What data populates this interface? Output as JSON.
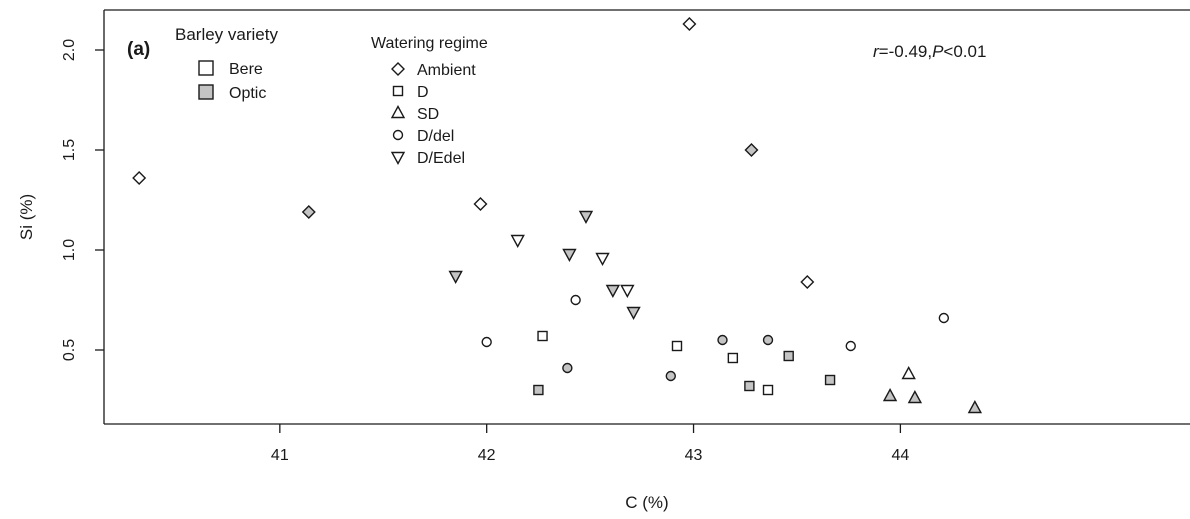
{
  "chart_data": {
    "type": "scatter",
    "panel_label": "(a)",
    "xlabel": "C (%)",
    "ylabel": "Si (%)",
    "xlim": [
      40.15,
      45.4
    ],
    "ylim": [
      0.13,
      2.2
    ],
    "xticks": [
      41,
      42,
      43,
      44
    ],
    "yticks": [
      0.5,
      1.0,
      1.5,
      2.0
    ],
    "xtick_labels": [
      "41",
      "42",
      "43",
      "44"
    ],
    "ytick_labels": [
      "0.5",
      "1.0",
      "1.5",
      "2.0"
    ],
    "grid": false,
    "annotation": {
      "r_symbol": "r",
      "r_value": "=-0.49,",
      "p_symbol": "P",
      "p_value": "<0.01"
    },
    "legend_variety": {
      "title": "Barley variety",
      "placement": "top-left",
      "entries": [
        {
          "label": "Bere",
          "fill": "#ffffff"
        },
        {
          "label": "Optic",
          "fill": "#c4c4c4"
        }
      ]
    },
    "legend_watering": {
      "title": "Watering regime",
      "placement": "top-left",
      "entries": [
        {
          "label": "Ambient",
          "shape": "diamond"
        },
        {
          "label": "D",
          "shape": "square"
        },
        {
          "label": "SD",
          "shape": "triangle-up"
        },
        {
          "label": "D/del",
          "shape": "circle"
        },
        {
          "label": "D/Edel",
          "shape": "triangle-down"
        }
      ]
    },
    "colors": {
      "Bere": "#ffffff",
      "Optic": "#c4c4c4",
      "stroke": "#1a1a1a"
    },
    "points": [
      {
        "x": 40.32,
        "y": 1.36,
        "variety": "Bere",
        "regime": "Ambient"
      },
      {
        "x": 41.14,
        "y": 1.19,
        "variety": "Optic",
        "regime": "Ambient"
      },
      {
        "x": 41.97,
        "y": 1.23,
        "variety": "Bere",
        "regime": "Ambient"
      },
      {
        "x": 42.98,
        "y": 2.13,
        "variety": "Bere",
        "regime": "Ambient"
      },
      {
        "x": 43.28,
        "y": 1.5,
        "variety": "Optic",
        "regime": "Ambient"
      },
      {
        "x": 43.55,
        "y": 0.84,
        "variety": "Bere",
        "regime": "Ambient"
      },
      {
        "x": 42.25,
        "y": 0.3,
        "variety": "Optic",
        "regime": "D"
      },
      {
        "x": 42.27,
        "y": 0.57,
        "variety": "Bere",
        "regime": "D"
      },
      {
        "x": 42.92,
        "y": 0.52,
        "variety": "Bere",
        "regime": "D"
      },
      {
        "x": 43.19,
        "y": 0.46,
        "variety": "Bere",
        "regime": "D"
      },
      {
        "x": 43.27,
        "y": 0.32,
        "variety": "Optic",
        "regime": "D"
      },
      {
        "x": 43.36,
        "y": 0.3,
        "variety": "Bere",
        "regime": "D"
      },
      {
        "x": 43.46,
        "y": 0.47,
        "variety": "Optic",
        "regime": "D"
      },
      {
        "x": 43.66,
        "y": 0.35,
        "variety": "Optic",
        "regime": "D"
      },
      {
        "x": 43.95,
        "y": 0.27,
        "variety": "Optic",
        "regime": "SD"
      },
      {
        "x": 44.04,
        "y": 0.38,
        "variety": "Bere",
        "regime": "SD"
      },
      {
        "x": 44.07,
        "y": 0.26,
        "variety": "Optic",
        "regime": "SD"
      },
      {
        "x": 44.36,
        "y": 0.21,
        "variety": "Optic",
        "regime": "SD"
      },
      {
        "x": 42.0,
        "y": 0.54,
        "variety": "Bere",
        "regime": "D/del"
      },
      {
        "x": 42.39,
        "y": 0.41,
        "variety": "Optic",
        "regime": "D/del"
      },
      {
        "x": 42.43,
        "y": 0.75,
        "variety": "Bere",
        "regime": "D/del"
      },
      {
        "x": 42.89,
        "y": 0.37,
        "variety": "Optic",
        "regime": "D/del"
      },
      {
        "x": 43.14,
        "y": 0.55,
        "variety": "Optic",
        "regime": "D/del"
      },
      {
        "x": 43.36,
        "y": 0.55,
        "variety": "Optic",
        "regime": "D/del"
      },
      {
        "x": 43.76,
        "y": 0.52,
        "variety": "Bere",
        "regime": "D/del"
      },
      {
        "x": 44.21,
        "y": 0.66,
        "variety": "Bere",
        "regime": "D/del"
      },
      {
        "x": 41.85,
        "y": 0.87,
        "variety": "Optic",
        "regime": "D/Edel"
      },
      {
        "x": 42.15,
        "y": 1.05,
        "variety": "Bere",
        "regime": "D/Edel"
      },
      {
        "x": 42.4,
        "y": 0.98,
        "variety": "Optic",
        "regime": "D/Edel"
      },
      {
        "x": 42.48,
        "y": 1.17,
        "variety": "Optic",
        "regime": "D/Edel"
      },
      {
        "x": 42.56,
        "y": 0.96,
        "variety": "Bere",
        "regime": "D/Edel"
      },
      {
        "x": 42.61,
        "y": 0.8,
        "variety": "Optic",
        "regime": "D/Edel"
      },
      {
        "x": 42.68,
        "y": 0.8,
        "variety": "Bere",
        "regime": "D/Edel"
      },
      {
        "x": 42.71,
        "y": 0.69,
        "variety": "Optic",
        "regime": "D/Edel"
      }
    ]
  }
}
